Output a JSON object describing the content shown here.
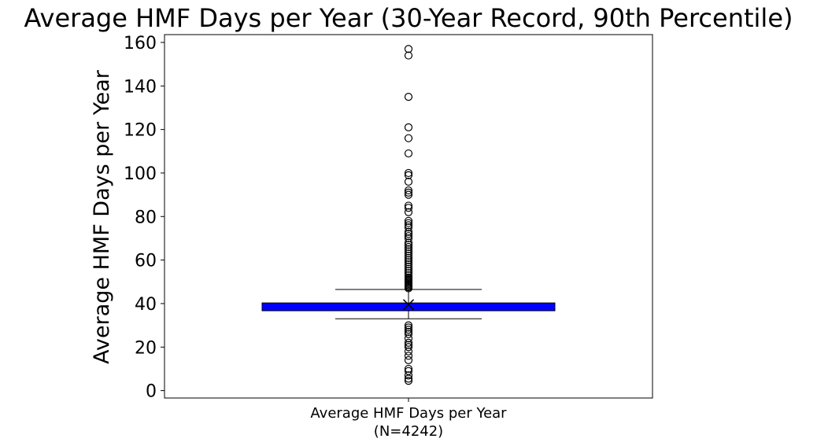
{
  "chart_data": {
    "type": "box",
    "title": "Average HMF Days per Year (30-Year Record, 90th Percentile)",
    "ylabel": "Average HMF Days per Year",
    "xlabel": "",
    "ylim": [
      -3.4,
      163.6
    ],
    "yticks": [
      0,
      20,
      40,
      60,
      80,
      100,
      120,
      140,
      160
    ],
    "categories": [
      "Average HMF Days per Year\n(N=4242)"
    ],
    "grid": false,
    "colors": {
      "box": "#0000ff",
      "edge": "#000000"
    },
    "boxes": [
      {
        "label_line1": "Average HMF Days per Year",
        "label_line2": "(N=4242)",
        "whisker_low": 33,
        "q1": 36.7,
        "median": 38.5,
        "q3": 40.3,
        "whisker_high": 46.5,
        "mean": 39.5,
        "outliers_high": [
          47,
          47.5,
          48,
          48.5,
          49,
          49.5,
          50,
          50.5,
          51,
          51.5,
          52,
          53,
          54,
          55,
          56,
          57,
          58,
          59,
          60,
          61,
          62,
          63,
          64,
          65,
          66,
          67,
          68,
          70,
          71,
          72,
          73,
          75,
          76,
          77,
          78,
          82,
          84,
          85,
          90,
          91,
          92,
          96,
          99,
          100,
          109,
          116,
          121,
          135,
          154,
          157
        ],
        "outliers_low": [
          30,
          29,
          28,
          27,
          26,
          24,
          22,
          21,
          20,
          18,
          16,
          14,
          10,
          9,
          7,
          5.5,
          4.5
        ]
      }
    ]
  }
}
